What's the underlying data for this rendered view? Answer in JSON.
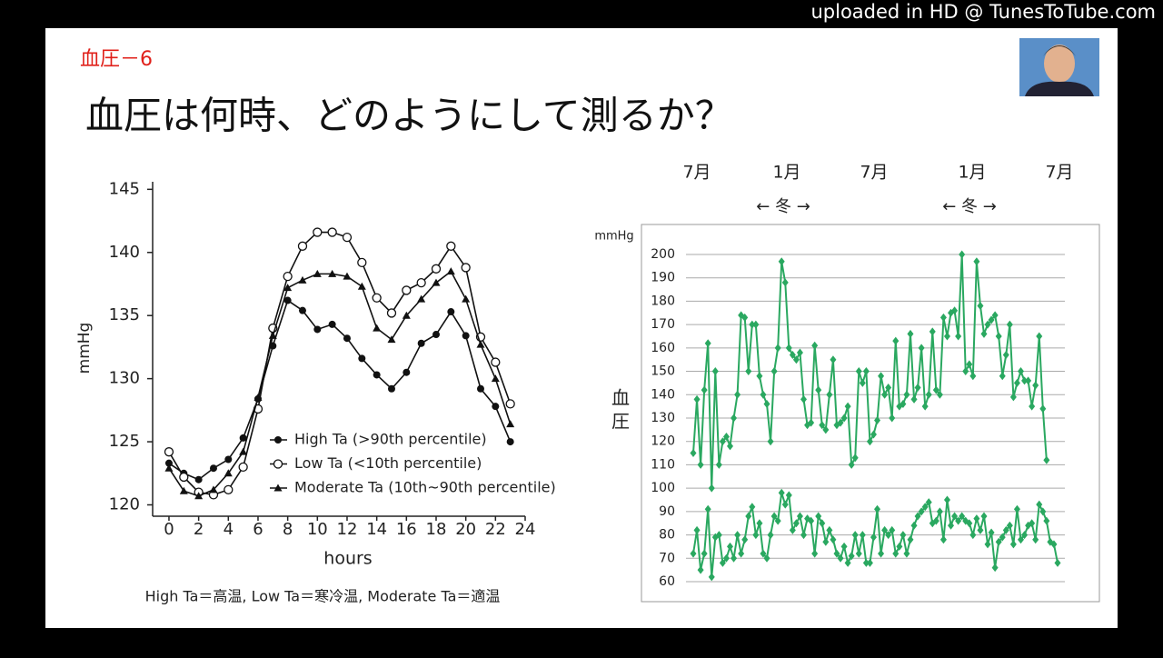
{
  "watermark": "uploaded in HD @ TunesToTube.com",
  "slide": {
    "label": "血圧－6",
    "title": "血圧は何時、どのようにして測るか？",
    "caption": "High Ta＝高温, Low Ta＝寒冷温, Moderate Ta＝適温"
  },
  "chart_data": [
    {
      "type": "line",
      "ylabel": "mmHg",
      "xlabel": "hours",
      "xlim": [
        -1.1,
        24
      ],
      "ylim": [
        119.1,
        145.6
      ],
      "xticks": [
        0,
        2,
        4,
        6,
        8,
        10,
        12,
        14,
        16,
        18,
        20,
        22,
        24
      ],
      "yticks": [
        120,
        125,
        130,
        135,
        140,
        145
      ],
      "x": [
        0,
        1,
        2,
        3,
        4,
        5,
        6,
        7,
        8,
        9,
        10,
        11,
        12,
        13,
        14,
        15,
        16,
        17,
        18,
        19,
        20,
        21,
        22,
        23
      ],
      "legend": "lower-center",
      "series": [
        {
          "name": "High Ta (>90th percentile)",
          "color": "#111111",
          "marker": "circle-filled",
          "values": [
            123.3,
            122.5,
            122.0,
            122.9,
            123.6,
            125.3,
            128.4,
            132.6,
            136.2,
            135.4,
            133.9,
            134.3,
            133.2,
            131.6,
            130.3,
            129.2,
            130.5,
            132.8,
            133.5,
            135.3,
            133.4,
            129.2,
            127.8,
            125.0
          ]
        },
        {
          "name": "Low Ta (<10th percentile)",
          "color": "#111111",
          "marker": "circle-open",
          "values": [
            124.2,
            122.2,
            121.0,
            120.8,
            121.2,
            123.0,
            127.6,
            134.0,
            138.1,
            140.5,
            141.6,
            141.6,
            141.2,
            139.2,
            136.4,
            135.2,
            137.0,
            137.6,
            138.7,
            140.5,
            138.8,
            133.3,
            131.3,
            128.0
          ]
        },
        {
          "name": "Moderate Ta (10th~90th percentile)",
          "color": "#111111",
          "marker": "triangle",
          "values": [
            122.9,
            121.1,
            120.7,
            121.2,
            122.5,
            124.2,
            128.5,
            133.4,
            137.2,
            137.8,
            138.3,
            138.3,
            138.1,
            137.3,
            134.0,
            133.1,
            135.0,
            136.3,
            137.6,
            138.5,
            136.3,
            132.7,
            130.0,
            126.4
          ]
        }
      ]
    },
    {
      "type": "line",
      "ylabel": "血圧",
      "unit": "mmHg",
      "months": [
        "7月",
        "1月",
        "7月",
        "1月",
        "7月"
      ],
      "seasons": [
        "← 冬 →",
        "← 冬 →"
      ],
      "ylim": [
        53,
        206.6
      ],
      "yticks": [
        60,
        70,
        80,
        90,
        100,
        110,
        120,
        130,
        140,
        150,
        160,
        170,
        180,
        190,
        200
      ],
      "grid": true,
      "series": [
        {
          "color": "#2aa860",
          "marker": "diamond",
          "values": [
            115,
            138,
            110,
            142,
            162,
            100,
            150,
            110,
            120,
            122,
            118,
            130,
            140,
            174,
            173,
            150,
            170,
            170,
            148,
            140,
            136,
            120,
            150,
            160,
            197,
            188,
            160,
            157,
            155,
            158,
            138,
            127,
            128,
            161,
            142,
            127,
            125,
            140,
            155,
            127,
            128,
            130,
            135,
            110,
            113,
            150,
            145,
            150,
            120,
            123,
            129,
            148,
            140,
            143,
            130,
            163,
            135,
            136,
            140,
            166,
            138,
            143,
            160,
            135,
            140,
            167,
            142,
            140,
            173,
            165,
            175,
            176,
            165,
            200,
            150,
            153,
            148,
            197,
            178,
            166,
            170,
            172,
            174,
            165,
            148,
            157,
            170,
            139,
            145,
            150,
            146,
            146,
            135,
            144,
            165,
            134,
            112
          ]
        },
        {
          "color": "#2aa860",
          "marker": "diamond",
          "values": [
            72,
            82,
            65,
            72,
            91,
            62,
            79,
            80,
            68,
            70,
            75,
            70,
            80,
            72,
            78,
            88,
            92,
            80,
            85,
            72,
            70,
            80,
            88,
            86,
            98,
            93,
            97,
            82,
            85,
            88,
            80,
            87,
            86,
            72,
            88,
            85,
            77,
            82,
            78,
            72,
            70,
            75,
            68,
            71,
            80,
            72,
            80,
            68,
            68,
            79,
            91,
            72,
            82,
            80,
            82,
            72,
            75,
            80,
            72,
            78,
            84,
            88,
            90,
            92,
            94,
            85,
            86,
            90,
            78,
            95,
            84,
            88,
            86,
            88,
            86,
            85,
            80,
            87,
            82,
            88,
            76,
            81,
            66,
            77,
            79,
            82,
            84,
            76,
            91,
            78,
            80,
            84,
            85,
            78,
            93,
            90,
            86,
            77,
            76,
            68
          ]
        }
      ]
    }
  ]
}
